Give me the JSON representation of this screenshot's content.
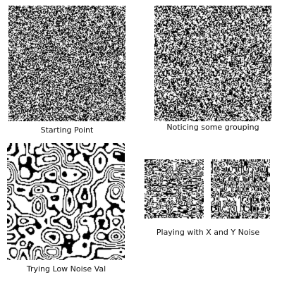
{
  "panels": [
    {
      "id": "starting-point",
      "caption": "Starting Point"
    },
    {
      "id": "grouping",
      "caption": "Noticing some grouping"
    },
    {
      "id": "low-noise",
      "caption": "Trying Low Noise Val"
    },
    {
      "id": "xy-noise",
      "caption": "Playing with X and Y Noise"
    }
  ],
  "colors": {
    "ink": "#000000",
    "paper": "#ffffff",
    "text": "#111111"
  }
}
